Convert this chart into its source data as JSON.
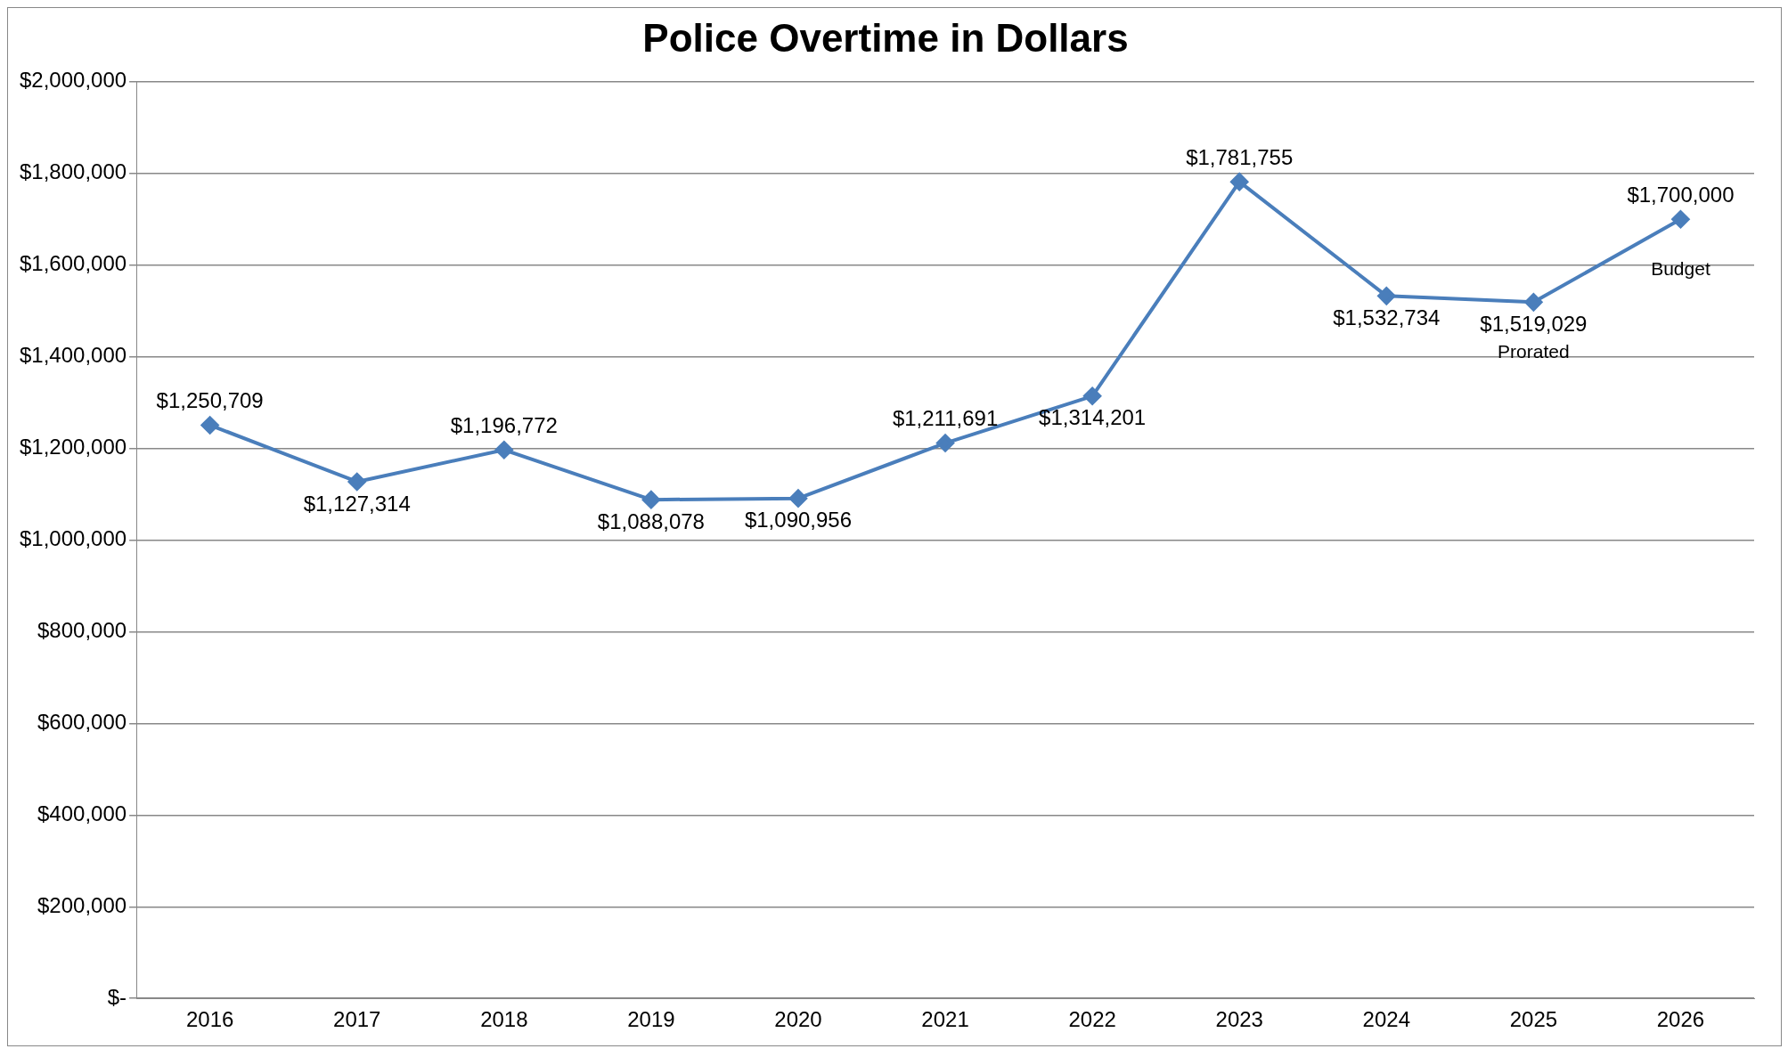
{
  "chart_data": {
    "type": "line",
    "title": "Police Overtime in Dollars",
    "categories": [
      "2016",
      "2017",
      "2018",
      "2019",
      "2020",
      "2021",
      "2022",
      "2023",
      "2024",
      "2025",
      "2026"
    ],
    "series": [
      {
        "color": "#4a7ebb",
        "values": [
          1250709,
          1127314,
          1196772,
          1088078,
          1090956,
          1211691,
          1314201,
          1781755,
          1532734,
          1519029,
          1700000
        ],
        "value_labels": [
          "$1,250,709",
          "$1,127,314",
          "$1,196,772",
          "$1,088,078",
          "$1,090,956",
          "$1,211,691",
          "$1,314,201",
          "$1,781,755",
          "$1,532,734",
          "$1,519,029",
          "$1,700,000"
        ]
      }
    ],
    "ylim": [
      0,
      2000000
    ],
    "yticks": [
      {
        "value": 0,
        "label": "$-"
      },
      {
        "value": 200000,
        "label": "$200,000"
      },
      {
        "value": 400000,
        "label": "$400,000"
      },
      {
        "value": 600000,
        "label": "$600,000"
      },
      {
        "value": 800000,
        "label": "$800,000"
      },
      {
        "value": 1000000,
        "label": "$1,000,000"
      },
      {
        "value": 1200000,
        "label": "$1,200,000"
      },
      {
        "value": 1400000,
        "label": "$1,400,000"
      },
      {
        "value": 1600000,
        "label": "$1,600,000"
      },
      {
        "value": 1800000,
        "label": "$1,800,000"
      },
      {
        "value": 2000000,
        "label": "$2,000,000"
      }
    ],
    "annotations": [
      {
        "text": "Prorated",
        "x": "2025",
        "y": 1519029
      },
      {
        "text": "Budget",
        "x": "2026",
        "y": 1700000
      }
    ],
    "grid": "y",
    "legend": false,
    "marker": "diamond",
    "line_style": "solid"
  }
}
